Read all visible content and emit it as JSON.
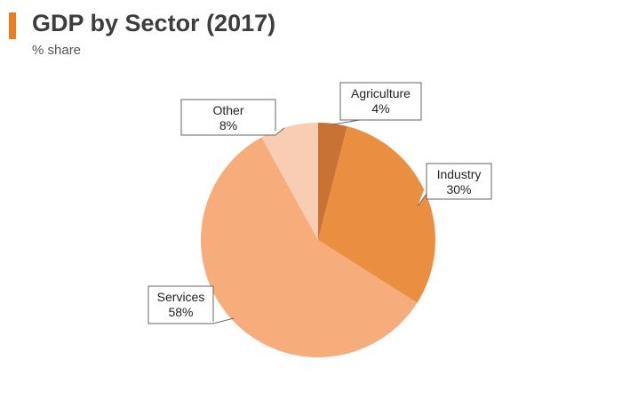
{
  "header": {
    "title": "GDP by Sector (2017)",
    "subtitle": "% share",
    "accent_color": "#f07c22"
  },
  "chart_data": {
    "type": "pie",
    "title": "GDP by Sector (2017)",
    "subtitle": "% share",
    "unit": "%",
    "start_angle_deg": 0,
    "direction": "clockwise",
    "slices": [
      {
        "label": "Agriculture",
        "value": 4,
        "value_label": "4%",
        "color": "#c87236"
      },
      {
        "label": "Industry",
        "value": 30,
        "value_label": "30%",
        "color": "#ea8f42"
      },
      {
        "label": "Services",
        "value": 58,
        "value_label": "58%",
        "color": "#f7ad7b"
      },
      {
        "label": "Other",
        "value": 8,
        "value_label": "8%",
        "color": "#f8cdb3"
      }
    ]
  }
}
